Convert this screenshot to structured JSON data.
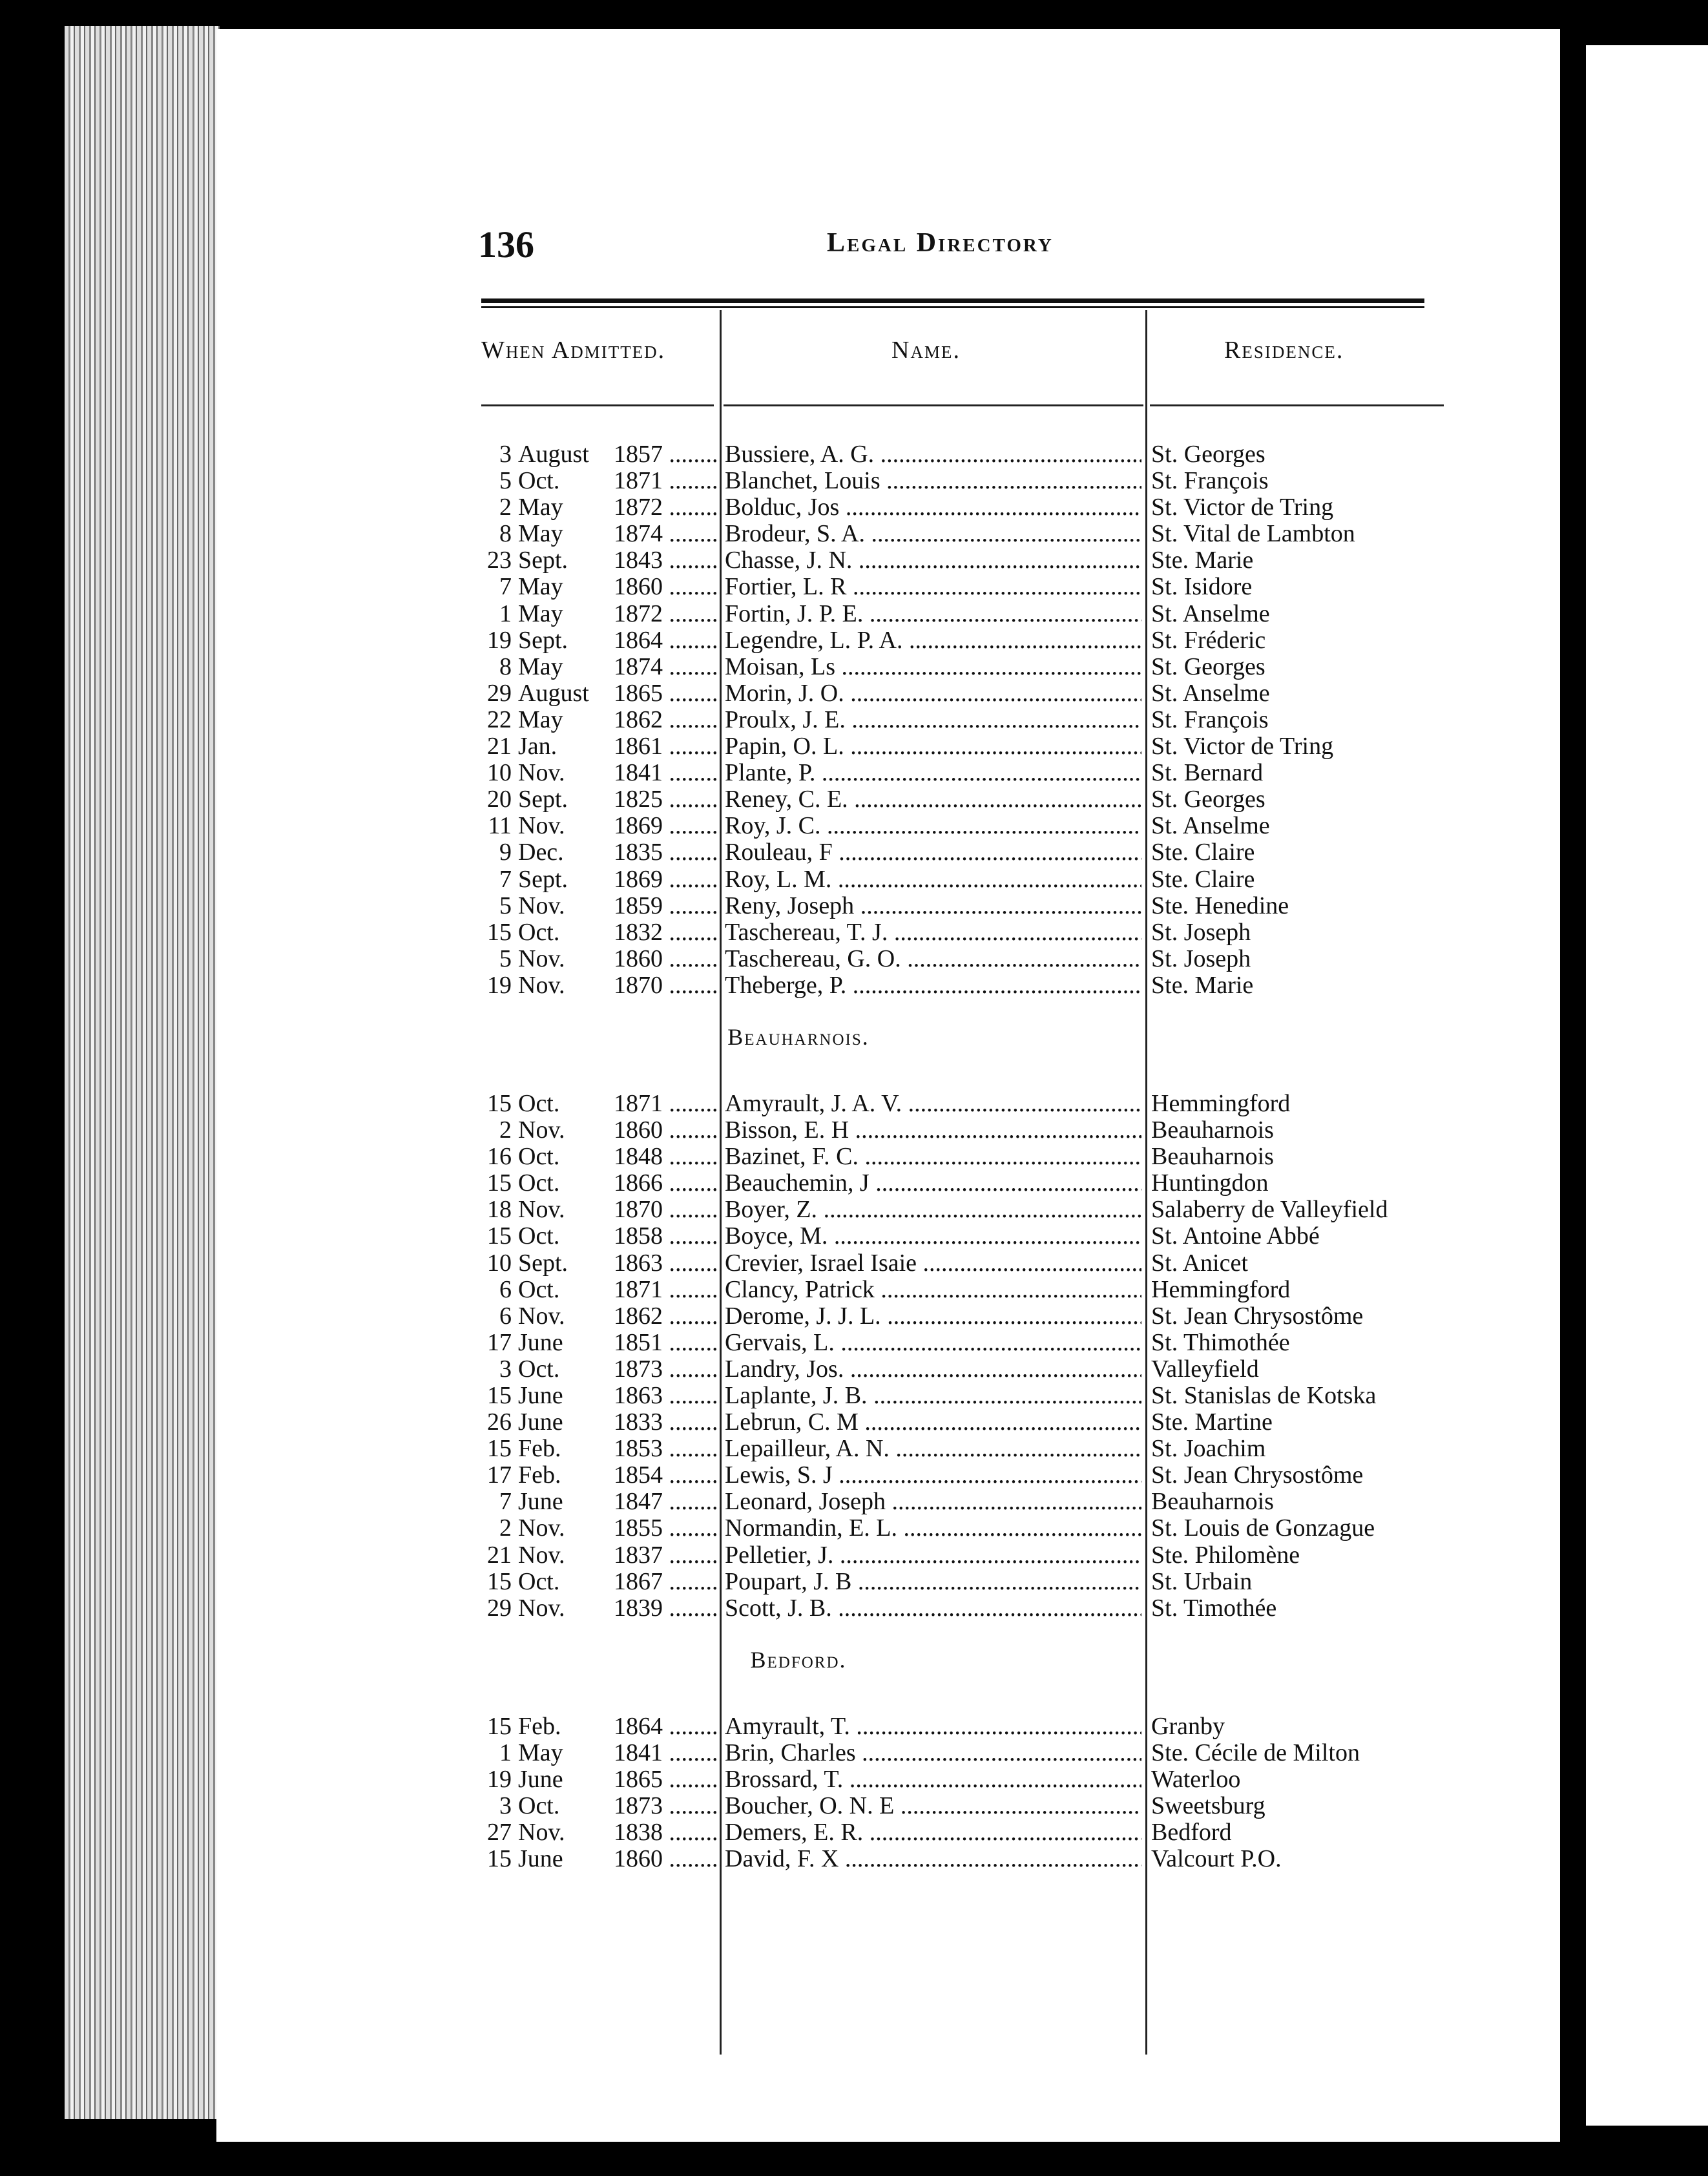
{
  "page_number": "136",
  "running_head": "Legal Directory",
  "columns": {
    "admitted": "When Admitted.",
    "name": "Name.",
    "residence": "Residence."
  },
  "sections": [
    {
      "heading": "",
      "rows": [
        [
          "3",
          "August",
          "1857",
          "Bussiere, A. G.",
          "St. Georges"
        ],
        [
          "5",
          "Oct.",
          "1871",
          "Blanchet, Louis",
          "St. François"
        ],
        [
          "2",
          "May",
          "1872",
          "Bolduc, Jos",
          "St. Victor de Tring"
        ],
        [
          "8",
          "May",
          "1874",
          "Brodeur, S. A.",
          "St. Vital de Lambton"
        ],
        [
          "23",
          "Sept.",
          "1843",
          "Chasse, J. N.",
          "Ste. Marie"
        ],
        [
          "7",
          "May",
          "1860",
          "Fortier, L. R",
          "St. Isidore"
        ],
        [
          "1",
          "May",
          "1872",
          "Fortin, J. P. E.",
          "St. Anselme"
        ],
        [
          "19",
          "Sept.",
          "1864",
          "Legendre, L. P. A.",
          "St. Fréderic"
        ],
        [
          "8",
          "May",
          "1874",
          "Moisan, Ls",
          "St. Georges"
        ],
        [
          "29",
          "August",
          "1865",
          "Morin, J. O.",
          "St. Anselme"
        ],
        [
          "22",
          "May",
          "1862",
          "Proulx, J. E.",
          "St. François"
        ],
        [
          "21",
          "Jan.",
          "1861",
          "Papin, O. L.",
          "St. Victor de Tring"
        ],
        [
          "10",
          "Nov.",
          "1841",
          "Plante, P.",
          "St. Bernard"
        ],
        [
          "20",
          "Sept.",
          "1825",
          "Reney, C. E.",
          "St. Georges"
        ],
        [
          "11",
          "Nov.",
          "1869",
          "Roy, J. C.",
          "St. Anselme"
        ],
        [
          "9",
          "Dec.",
          "1835",
          "Rouleau, F",
          "Ste. Claire"
        ],
        [
          "7",
          "Sept.",
          "1869",
          "Roy, L. M.",
          "Ste. Claire"
        ],
        [
          "5",
          "Nov.",
          "1859",
          "Reny, Joseph",
          "Ste. Henedine"
        ],
        [
          "15",
          "Oct.",
          "1832",
          "Taschereau, T. J.",
          "St. Joseph"
        ],
        [
          "5",
          "Nov.",
          "1860",
          "Taschereau, G. O.",
          "St. Joseph"
        ],
        [
          "19",
          "Nov.",
          "1870",
          "Theberge, P.",
          "Ste. Marie"
        ]
      ]
    },
    {
      "heading": "Beauharnois.",
      "rows": [
        [
          "15",
          "Oct.",
          "1871",
          "Amyrault, J. A. V.",
          "Hemmingford"
        ],
        [
          "2",
          "Nov.",
          "1860",
          "Bisson, E. H",
          "Beauharnois"
        ],
        [
          "16",
          "Oct.",
          "1848",
          "Bazinet, F. C.",
          "Beauharnois"
        ],
        [
          "15",
          "Oct.",
          "1866",
          "Beauchemin, J",
          "Huntingdon"
        ],
        [
          "18",
          "Nov.",
          "1870",
          "Boyer, Z.",
          "Salaberry de Valleyfield"
        ],
        [
          "15",
          "Oct.",
          "1858",
          "Boyce, M.",
          "St. Antoine Abbé"
        ],
        [
          "10",
          "Sept.",
          "1863",
          "Crevier, Israel Isaie",
          "St. Anicet"
        ],
        [
          "6",
          "Oct.",
          "1871",
          "Clancy, Patrick",
          "Hemmingford"
        ],
        [
          "6",
          "Nov.",
          "1862",
          "Derome, J. J. L.",
          "St. Jean Chrysostôme"
        ],
        [
          "17",
          "June",
          "1851",
          "Gervais, L.",
          "St. Thimothée"
        ],
        [
          "3",
          "Oct.",
          "1873",
          "Landry, Jos.",
          "Valleyfield"
        ],
        [
          "15",
          "June",
          "1863",
          "Laplante, J. B.",
          "St. Stanislas de Kotska"
        ],
        [
          "26",
          "June",
          "1833",
          "Lebrun, C. M",
          "Ste. Martine"
        ],
        [
          "15",
          "Feb.",
          "1853",
          "Lepailleur, A. N.",
          "St. Joachim"
        ],
        [
          "17",
          "Feb.",
          "1854",
          "Lewis, S. J",
          "St. Jean Chrysostôme"
        ],
        [
          "7",
          "June",
          "1847",
          "Leonard, Joseph",
          "Beauharnois"
        ],
        [
          "2",
          "Nov.",
          "1855",
          "Normandin, E. L.",
          "St. Louis de Gonzague"
        ],
        [
          "21",
          "Nov.",
          "1837",
          "Pelletier, J.",
          "Ste. Philomène"
        ],
        [
          "15",
          "Oct.",
          "1867",
          "Poupart, J. B",
          "St. Urbain"
        ],
        [
          "29",
          "Nov.",
          "1839",
          "Scott, J. B.",
          "St. Timothée"
        ]
      ]
    },
    {
      "heading": "Bedford.",
      "rows": [
        [
          "15",
          "Feb.",
          "1864",
          "Amyrault, T.",
          "Granby"
        ],
        [
          "1",
          "May",
          "1841",
          "Brin, Charles",
          "Ste. Cécile de Milton"
        ],
        [
          "19",
          "June",
          "1865",
          "Brossard, T.",
          "Waterloo"
        ],
        [
          "3",
          "Oct.",
          "1873",
          "Boucher, O. N. E",
          "Sweetsburg"
        ],
        [
          "27",
          "Nov.",
          "1838",
          "Demers, E. R.",
          "Bedford"
        ],
        [
          "15",
          "June",
          "1860",
          "David, F. X",
          "Valcourt P.O."
        ]
      ]
    }
  ]
}
